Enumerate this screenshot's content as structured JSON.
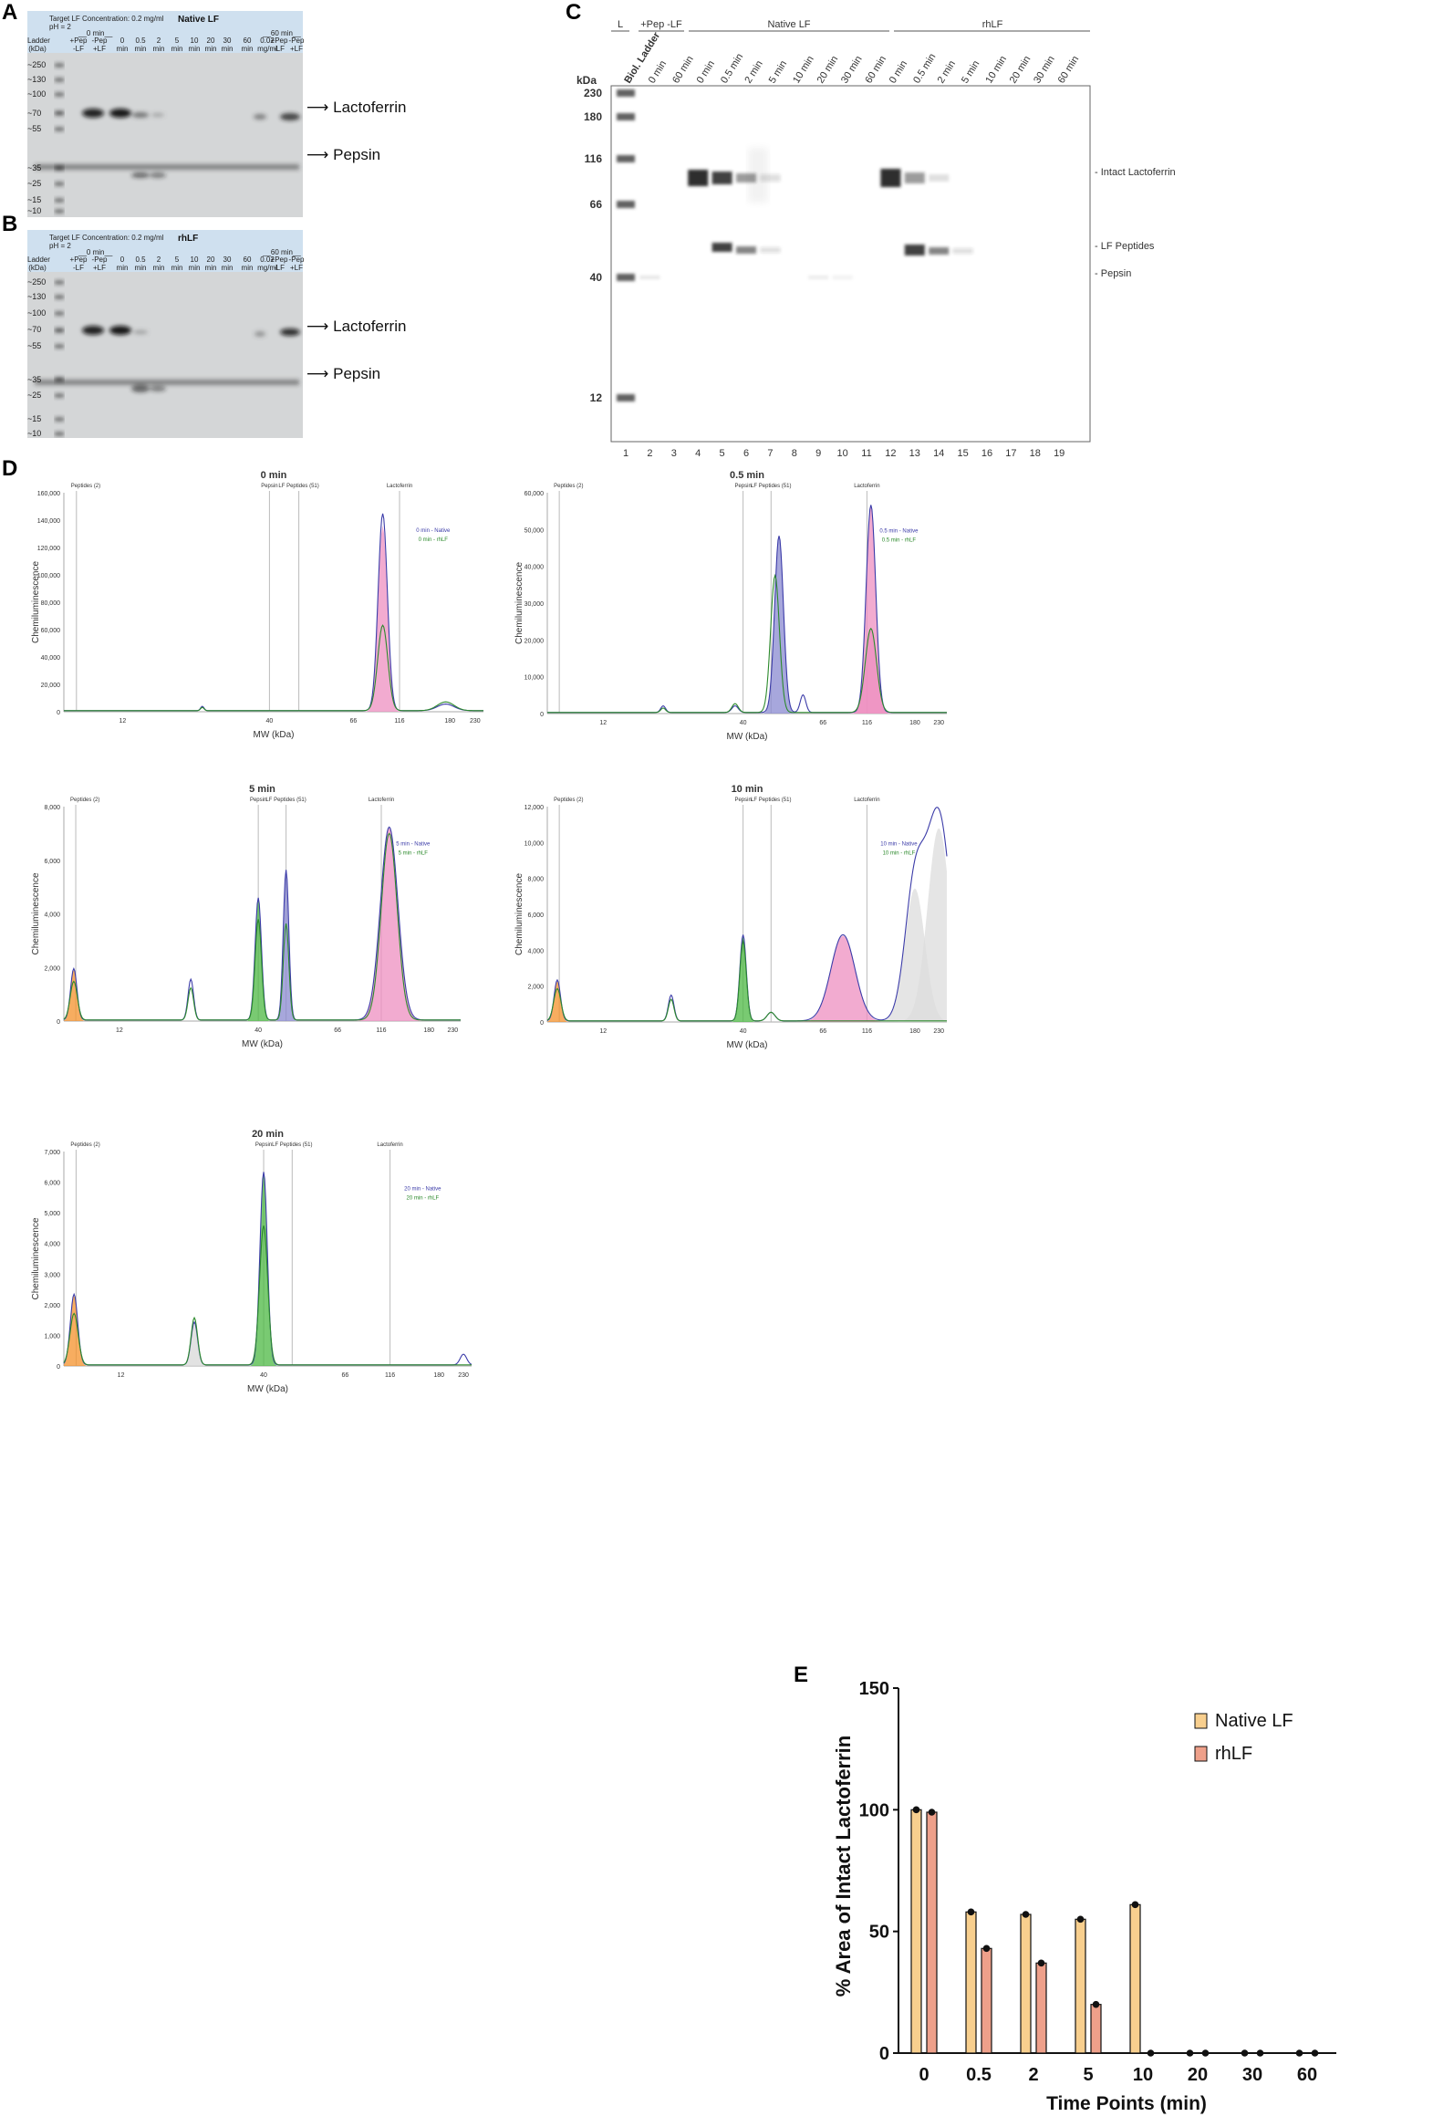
{
  "panels": {
    "A": "A",
    "B": "B",
    "C": "C",
    "D": "D",
    "E": "E"
  },
  "panel_a": {
    "line1": "Target LF Concentration: 0.2 mg/ml",
    "line2": "pH = 2",
    "title": "Native LF",
    "group0": "__0 min__",
    "group60": "__60 min__",
    "lanes": [
      [
        "Ladder",
        "(kDa)"
      ],
      [
        "+Pep",
        "-LF"
      ],
      [
        "-Pep",
        "+LF"
      ],
      [
        "0",
        "min"
      ],
      [
        "0.5",
        "min"
      ],
      [
        "2",
        "min"
      ],
      [
        "5",
        "min"
      ],
      [
        "10",
        "min"
      ],
      [
        "20",
        "min"
      ],
      [
        "30",
        "min"
      ],
      [
        "60",
        "min"
      ],
      [
        "0.02",
        "mg/ml"
      ],
      [
        "+Pep",
        "-LF"
      ],
      [
        "-Pep",
        "+LF"
      ]
    ],
    "markers": [
      "~250",
      "~130",
      "~100",
      "~70",
      "~55",
      "~35",
      "~25",
      "~15",
      "~10"
    ],
    "label_lf": "Lactoferrin",
    "label_pepsin": "Pepsin"
  },
  "panel_b": {
    "line1": "Target LF Concentration: 0.2 mg/ml",
    "line2": "pH = 2",
    "title": "rhLF",
    "group0": "__0 min__",
    "group60": "__60 min__",
    "lanes": [
      [
        "Ladder",
        "(kDa)"
      ],
      [
        "+Pep",
        "-LF"
      ],
      [
        "-Pep",
        "+LF"
      ],
      [
        "0",
        "min"
      ],
      [
        "0.5",
        "min"
      ],
      [
        "2",
        "min"
      ],
      [
        "5",
        "min"
      ],
      [
        "10",
        "min"
      ],
      [
        "20",
        "min"
      ],
      [
        "30",
        "min"
      ],
      [
        "60",
        "min"
      ],
      [
        "0.02",
        "mg/ml"
      ],
      [
        "+Pep",
        "-LF"
      ],
      [
        "-Pep",
        "+LF"
      ]
    ],
    "markers": [
      "~250",
      "~130",
      "~100",
      "~70",
      "~55",
      "~35",
      "~25",
      "~15",
      "~10"
    ],
    "label_lf": "Lactoferrin",
    "label_pepsin": "Pepsin"
  },
  "panel_c": {
    "group_l": "L",
    "group_ctrl": "+Pep -LF",
    "group_native": "Native LF",
    "group_rh": "rhLF",
    "lane_titles": [
      "Biol. Ladder",
      "0 min",
      "60 min",
      "0 min",
      "0.5 min",
      "2 min",
      "5 min",
      "10 min",
      "20 min",
      "30 min",
      "60 min",
      "0 min",
      "0.5 min",
      "2 min",
      "5 min",
      "10 min",
      "20 min",
      "30 min",
      "60 min"
    ],
    "kda_label": "kDa",
    "kda_values": [
      "230",
      "180",
      "116",
      "66",
      "40",
      "12"
    ],
    "lane_numbers": [
      "1",
      "2",
      "3",
      "4",
      "5",
      "6",
      "7",
      "8",
      "9",
      "10",
      "11",
      "12",
      "13",
      "14",
      "15",
      "16",
      "17",
      "18",
      "19"
    ],
    "label_intact": "Intact Lactoferrin",
    "label_peptides": "LF Peptides",
    "label_pepsin": "Pepsin"
  },
  "panel_d": {
    "y_label": "Chemiluminescence",
    "x_label": "MW (kDa)",
    "x_ticks": [
      "12",
      "40",
      "66",
      "116",
      "180",
      "230"
    ],
    "ref_peptides2": "Peptides (2)",
    "ref_pepsin": "Pepsin",
    "ref_lfpep": "LF Peptides (51)",
    "ref_lf": "Lactoferrin",
    "plots": [
      {
        "title": "0 min",
        "y_ticks": [
          "0",
          "20,000",
          "40,000",
          "60,000",
          "80,000",
          "100,000",
          "120,000",
          "140,000",
          "160,000"
        ],
        "legend_native": "0 min - Native",
        "legend_rh": "0 min - rhLF"
      },
      {
        "title": "0.5 min",
        "y_ticks": [
          "0",
          "10,000",
          "20,000",
          "30,000",
          "40,000",
          "50,000",
          "60,000"
        ],
        "legend_native": "0.5 min - Native",
        "legend_rh": "0.5 min - rhLF"
      },
      {
        "title": "5 min",
        "y_ticks": [
          "0",
          "2,000",
          "4,000",
          "6,000",
          "8,000"
        ],
        "legend_native": "5 min - Native",
        "legend_rh": "5 min - rhLF"
      },
      {
        "title": "10 min",
        "y_ticks": [
          "0",
          "2,000",
          "4,000",
          "6,000",
          "8,000",
          "10,000",
          "12,000"
        ],
        "legend_native": "10 min - Native",
        "legend_rh": "10 min - rhLF"
      },
      {
        "title": "20 min",
        "y_ticks": [
          "0",
          "1,000",
          "2,000",
          "3,000",
          "4,000",
          "5,000",
          "6,000",
          "7,000"
        ],
        "legend_native": "20 min - Native",
        "legend_rh": "20 min - rhLF"
      }
    ]
  },
  "chart_data": {
    "type": "bar",
    "title": "",
    "xlabel": "Time Points (min)",
    "ylabel": "% Area of Intact Lactoferrin",
    "ylim": [
      0,
      150
    ],
    "y_ticks": [
      "0",
      "50",
      "100",
      "150"
    ],
    "categories": [
      "0",
      "0.5",
      "2",
      "5",
      "10",
      "20",
      "30",
      "60"
    ],
    "series": [
      {
        "name": "Native LF",
        "color": "#f8cf8e",
        "values": [
          100,
          58,
          57,
          55,
          61,
          0,
          0,
          0
        ]
      },
      {
        "name": "rhLF",
        "color": "#eea08a",
        "values": [
          99,
          43,
          37,
          20,
          0,
          0,
          0,
          0
        ]
      }
    ]
  }
}
